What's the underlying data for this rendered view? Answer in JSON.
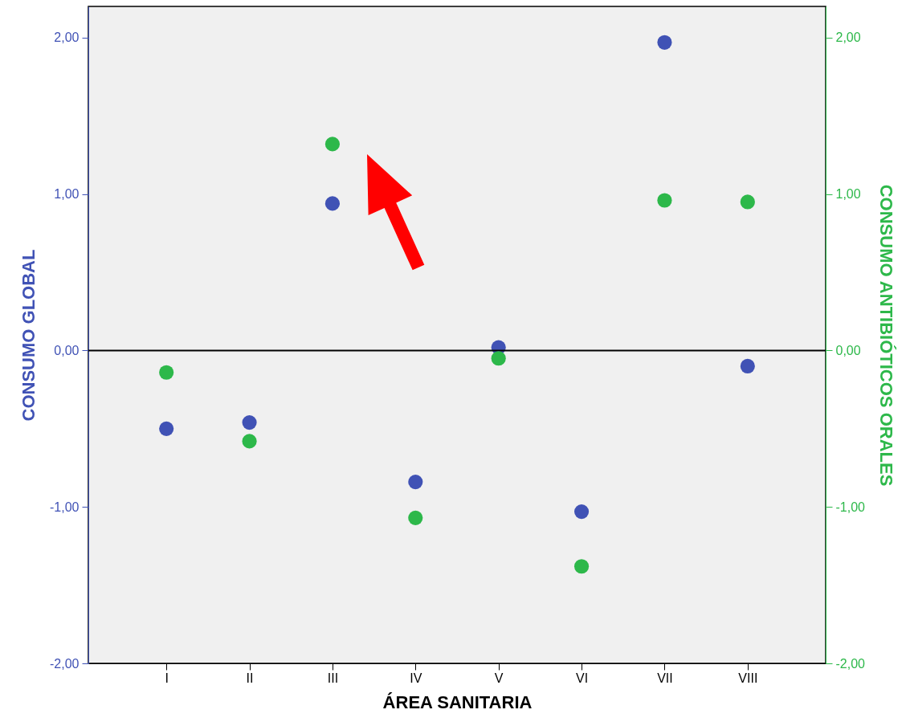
{
  "chart_data": {
    "type": "scatter",
    "xlabel": "ÁREA SANITARIA",
    "ylabel": "CONSUMO GLOBAL",
    "y2label": "CONSUMO ANTIBIÓTICOS ORALES",
    "categories": [
      "I",
      "II",
      "III",
      "IV",
      "V",
      "VI",
      "VII",
      "VIII"
    ],
    "series": [
      {
        "color": "#4052b5",
        "values": [
          -0.5,
          -0.46,
          0.94,
          -0.84,
          0.02,
          -1.03,
          1.97,
          -0.1
        ]
      },
      {
        "color": "#2db84a",
        "axis": "y2",
        "values": [
          -0.14,
          -0.58,
          1.32,
          -1.07,
          -0.05,
          -1.38,
          0.96,
          0.95
        ]
      }
    ],
    "ylim": [
      -2,
      2.2
    ],
    "yticks": [
      {
        "value": -2,
        "label": "-2,00"
      },
      {
        "value": -1,
        "label": "-1,00"
      },
      {
        "value": 0,
        "label": "0,00"
      },
      {
        "value": 1,
        "label": "1,00"
      },
      {
        "value": 2,
        "label": "2,00"
      }
    ],
    "y2lim": [
      -2,
      2.2
    ],
    "y2ticks": [
      {
        "value": -2,
        "label": "-2,00"
      },
      {
        "value": -1,
        "label": "-1,00"
      },
      {
        "value": 0,
        "label": "0,00"
      },
      {
        "value": 1,
        "label": "1,00"
      },
      {
        "value": 2,
        "label": "2,00"
      }
    ],
    "ref_lines": [
      {
        "axis": "y",
        "value": 0,
        "color": "#000000"
      }
    ],
    "marker": "circle",
    "grid": false
  }
}
